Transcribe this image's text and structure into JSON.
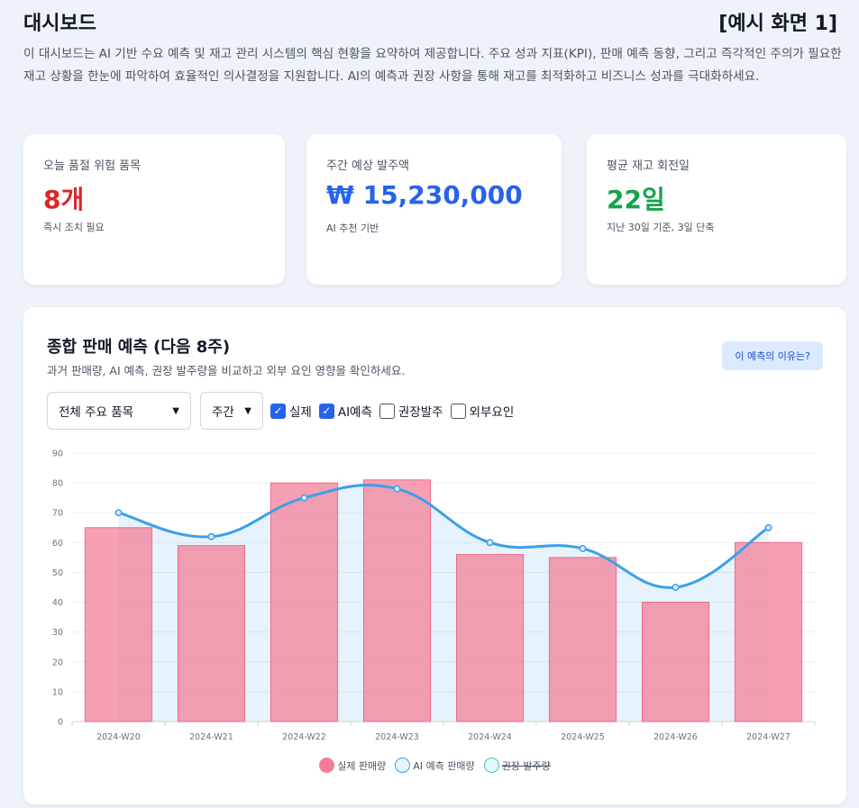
{
  "header": {
    "title": "대시보드",
    "example_tag": "[예시 화면 1]",
    "intro": "이 대시보드는 AI 기반 수요 예측 및 재고 관리 시스템의 핵심 현황을 요약하여 제공합니다. 주요 성과 지표(KPI), 판매 예측 동향, 그리고 즉각적인 주의가 필요한 재고 상황을 한눈에 파악하여 효율적인 의사결정을 지원합니다. AI의 예측과 권장 사항을 통해 재고를 최적화하고 비즈니스 성과를 극대화하세요."
  },
  "kpis": [
    {
      "label": "오늘 품절 위험 품목",
      "value": "8개",
      "note": "즉시 조치 필요",
      "color": "#dc2626"
    },
    {
      "label": "주간 예상 발주액",
      "value": "₩ 15,230,000",
      "note": "AI 추천 기반",
      "color": "#2563eb"
    },
    {
      "label": "평균 재고 회전일",
      "value": "22일",
      "note": "지난 30일 기준, 3일 단축",
      "color": "#16a34a"
    }
  ],
  "forecast": {
    "title": "종합 판매 예측 (다음 8주)",
    "subtitle": "과거 판매량, AI 예측, 권장 발주량을 비교하고 외부 요인 영향을 확인하세요.",
    "why_button": "이 예측의 이유는?",
    "product_select": "전체 주요 품목",
    "period_select": "주간",
    "checkboxes": [
      {
        "label": "실제",
        "checked": true
      },
      {
        "label": "AI예측",
        "checked": true
      },
      {
        "label": "권장발주",
        "checked": false
      },
      {
        "label": "외부요인",
        "checked": false
      }
    ],
    "legend": [
      {
        "label": "실제 판매량",
        "color": "#f47c96",
        "hidden": false
      },
      {
        "label": "AI 예측 판매량",
        "color": "#3ba0e8",
        "hidden": false
      },
      {
        "label": "권장 발주량",
        "color": "#4bc0c0",
        "hidden": true
      }
    ]
  },
  "chart_data": {
    "type": "bar",
    "categories": [
      "2024-W20",
      "2024-W21",
      "2024-W22",
      "2024-W23",
      "2024-W24",
      "2024-W25",
      "2024-W26",
      "2024-W27"
    ],
    "series": [
      {
        "name": "실제 판매량",
        "type": "bar",
        "color": "#f47c96",
        "values": [
          65,
          59,
          80,
          81,
          56,
          55,
          40,
          60
        ]
      },
      {
        "name": "AI 예측 판매량",
        "type": "line",
        "color": "#3ba0e8",
        "values": [
          70,
          62,
          75,
          78,
          60,
          58,
          45,
          65
        ]
      }
    ],
    "y_ticks": [
      0,
      10,
      20,
      30,
      40,
      50,
      60,
      70,
      80,
      90
    ],
    "ylim": [
      0,
      90
    ],
    "grid": true,
    "legend_position": "bottom"
  }
}
